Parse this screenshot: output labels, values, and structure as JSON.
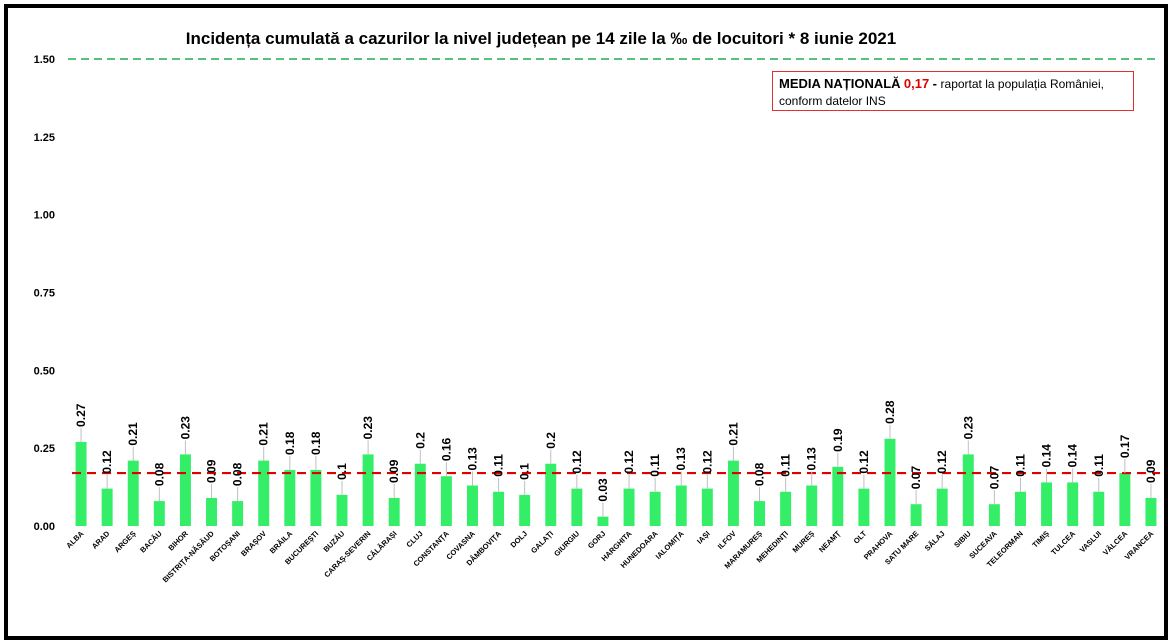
{
  "chart_data": {
    "type": "bar",
    "title": "Incidența cumulată a cazurilor la nivel județean pe 14 zile la ‰ de locuitori *  8 iunie 2021",
    "categories": [
      "ALBA",
      "ARAD",
      "ARGEȘ",
      "BACĂU",
      "BIHOR",
      "BISTRIȚA-NĂSĂUD",
      "BOTOȘANI",
      "BRAȘOV",
      "BRĂILA",
      "BUCUREȘTI",
      "BUZĂU",
      "CARAȘ-SEVERIN",
      "CĂLĂRAȘI",
      "CLUJ",
      "CONSTANȚA",
      "COVASNA",
      "DÂMBOVIȚA",
      "DOLJ",
      "GALAȚI",
      "GIURGIU",
      "GORJ",
      "HARGHITA",
      "HUNEDOARA",
      "IALOMIȚA",
      "IAȘI",
      "ILFOV",
      "MARAMUREȘ",
      "MEHEDINȚI",
      "MUREȘ",
      "NEAMȚ",
      "OLT",
      "PRAHOVA",
      "SATU MARE",
      "SĂLAJ",
      "SIBIU",
      "SUCEAVA",
      "TELEORMAN",
      "TIMIȘ",
      "TULCEA",
      "VASLUI",
      "VÂLCEA",
      "VRANCEA"
    ],
    "values": [
      0.27,
      0.12,
      0.21,
      0.08,
      0.23,
      0.09,
      0.08,
      0.21,
      0.18,
      0.18,
      0.1,
      0.23,
      0.09,
      0.2,
      0.16,
      0.13,
      0.11,
      0.1,
      0.2,
      0.12,
      0.03,
      0.12,
      0.11,
      0.13,
      0.12,
      0.21,
      0.08,
      0.11,
      0.13,
      0.19,
      0.12,
      0.28,
      0.07,
      0.12,
      0.23,
      0.07,
      0.11,
      0.14,
      0.14,
      0.11,
      0.17,
      0.09
    ],
    "data_labels": [
      "0.27",
      "0.12",
      "0.21",
      "0.08",
      "0.23",
      "0.09",
      "0.08",
      "0.21",
      "0.18",
      "0.18",
      "0.1",
      "0.23",
      "0.09",
      "0.2",
      "0.16",
      "0.13",
      "0.11",
      "0.1",
      "0.2",
      "0.12",
      "0.03",
      "0.12",
      "0.11",
      "0.13",
      "0.12",
      "0.21",
      "0.08",
      "0.11",
      "0.13",
      "0.19",
      "0.12",
      "0.28",
      "0.07",
      "0.12",
      "0.23",
      "0.07",
      "0.11",
      "0.14",
      "0.14",
      "0.11",
      "0.17",
      "0.09"
    ],
    "yticks": [
      "0.00",
      "0.25",
      "0.50",
      "0.75",
      "1.00",
      "1.25",
      "1.50"
    ],
    "ylim": [
      0,
      1.5
    ],
    "national_average": 0.17,
    "threshold_line": 1.5,
    "bar_color": "#33ee66",
    "average_line_color": "#e00000",
    "threshold_line_color": "#22aa55",
    "grid": false
  },
  "legend": {
    "label_bold": "MEDIA NAȚIONALĂ",
    "value": "0,17",
    "dash": " - ",
    "text_line1": "raportat la populația României,",
    "text_line2": "conform datelor INS"
  }
}
